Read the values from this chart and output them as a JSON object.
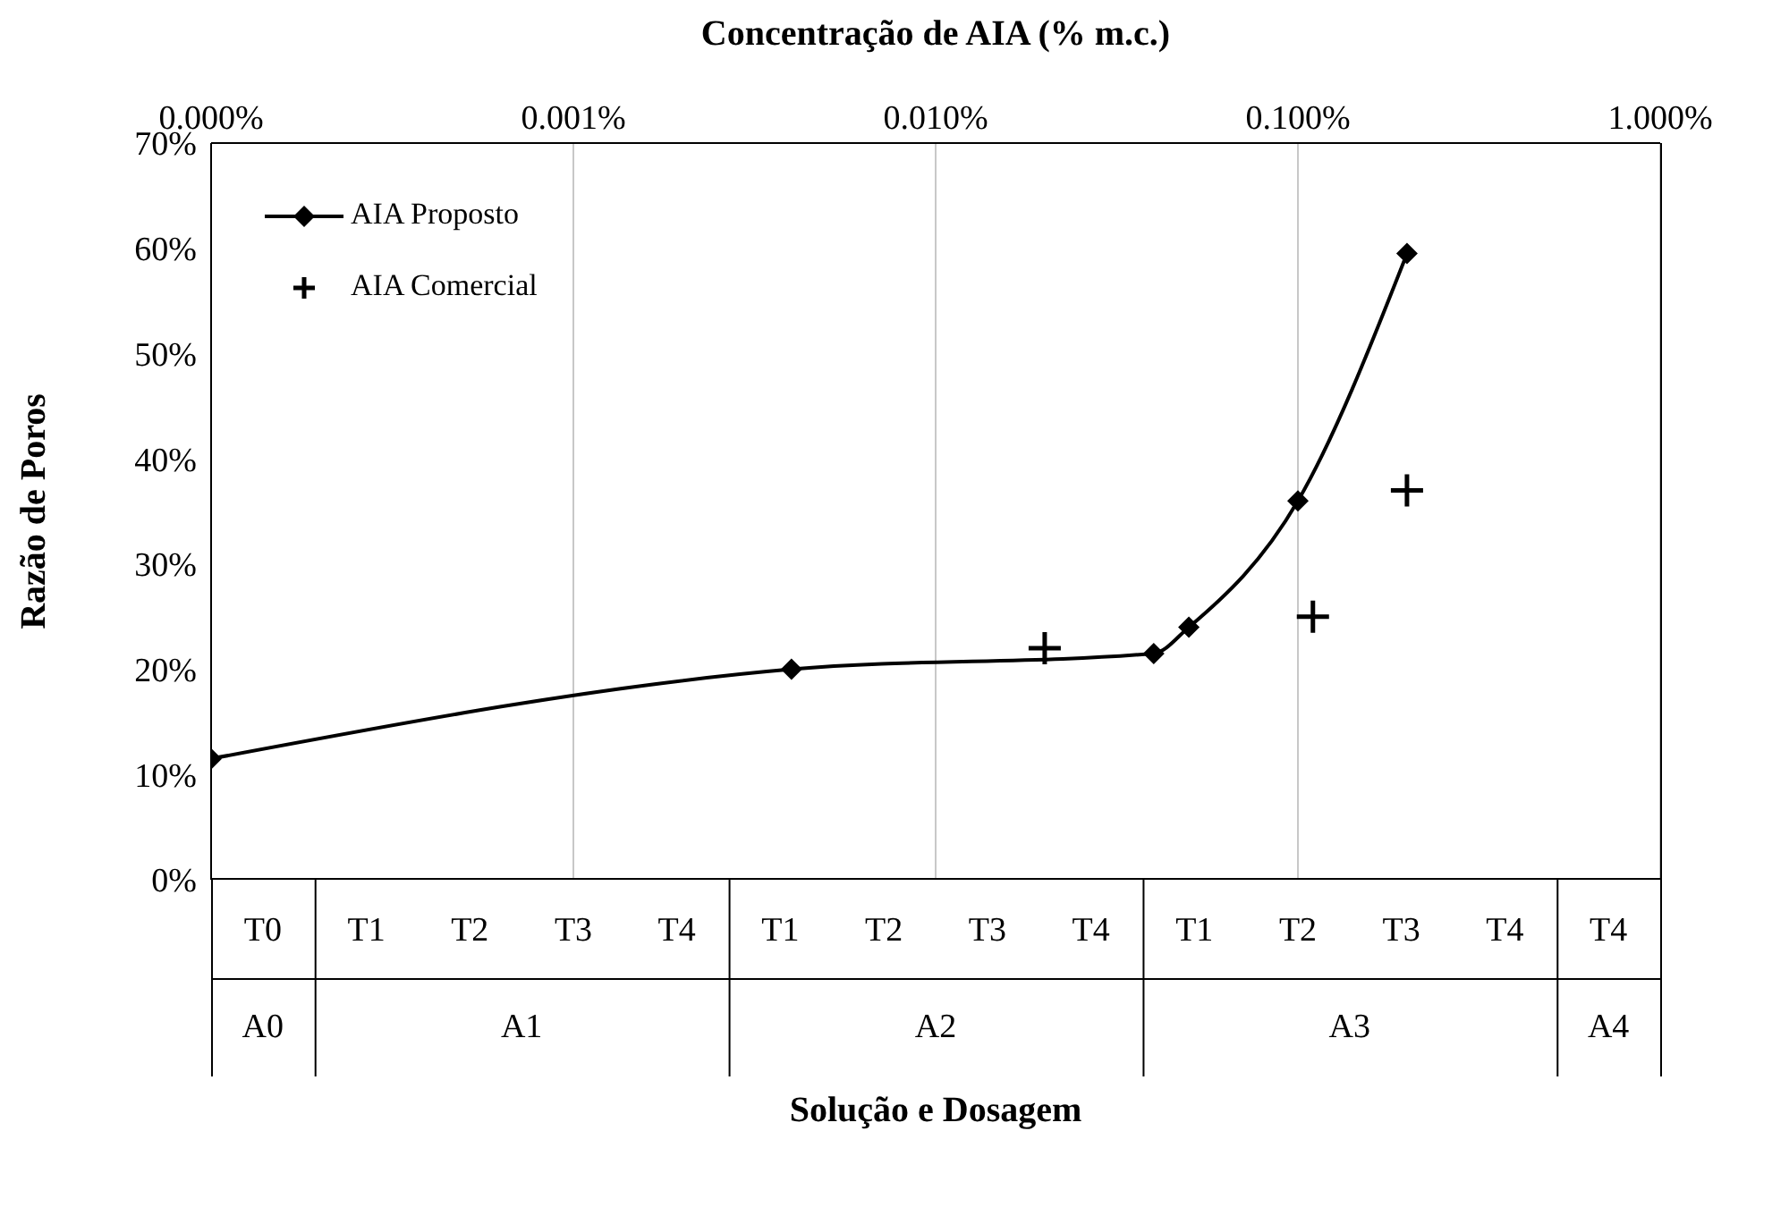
{
  "chart_data": [
    {
      "type": "line",
      "xlabel": "Concentração de AIA (% m.c.)",
      "ylabel": "Razão de Poros",
      "xlim": [
        0.0001,
        1
      ],
      "xticks": [
        {
          "value": 0.0001,
          "label": "0.000%"
        },
        {
          "value": 0.001,
          "label": "0.001%"
        },
        {
          "value": 0.01,
          "label": "0.010%"
        },
        {
          "value": 0.1,
          "label": "0.100%"
        },
        {
          "value": 1,
          "label": "1.000%"
        }
      ],
      "log": "x",
      "ylim": [
        0,
        70
      ],
      "yticks": [
        {
          "value": 0,
          "label": "0%"
        },
        {
          "value": 10,
          "label": "10%"
        },
        {
          "value": 20,
          "label": "20%"
        },
        {
          "value": 30,
          "label": "30%"
        },
        {
          "value": 40,
          "label": "40%"
        },
        {
          "value": 50,
          "label": "50%"
        },
        {
          "value": 60,
          "label": "60%"
        },
        {
          "value": 70,
          "label": "70%"
        }
      ],
      "grid": "x",
      "legend": "top left",
      "series": [
        {
          "name": "AIA Proposto",
          "color": "#000000",
          "marker": "diamond",
          "x": [
            0.0001,
            0.004,
            0.04,
            0.05,
            0.1,
            0.2
          ],
          "values": [
            11.5,
            20,
            21.5,
            24,
            36,
            59.5
          ]
        },
        {
          "name": "AIA Comercial",
          "type": "scatter",
          "color": "#000000",
          "marker": "cross",
          "x": [
            0.02,
            0.11,
            0.2
          ],
          "values": [
            22,
            25,
            37
          ]
        }
      ]
    },
    {
      "type": "other",
      "xlabel": "Solução e Dosagem",
      "annotations": [
        "T0",
        "T1",
        "T2",
        "T3",
        "T4",
        "T1",
        "T2",
        "T3",
        "T4",
        "T1",
        "T2",
        "T3",
        "T4",
        "T4",
        "A0",
        "A1",
        "A2",
        "A3",
        "A4"
      ]
    }
  ]
}
